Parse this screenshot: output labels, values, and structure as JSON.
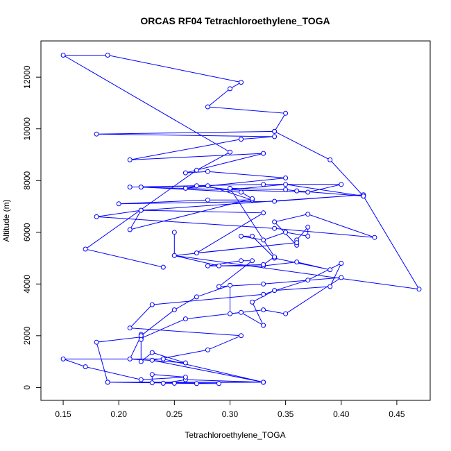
{
  "chart_data": {
    "type": "line",
    "title": "ORCAS RF04 Tetrachloroethylene_TOGA",
    "xlabel": "Tetrachloroethylene_TOGA",
    "ylabel": "Altitude (m)",
    "xlim": [
      0.13,
      0.48
    ],
    "ylim": [
      -500,
      13400
    ],
    "x_ticks": [
      0.15,
      0.2,
      0.25,
      0.3,
      0.35,
      0.4,
      0.45
    ],
    "x_tick_labels": [
      "0.15",
      "0.20",
      "0.25",
      "0.30",
      "0.35",
      "0.40",
      "0.45"
    ],
    "y_ticks": [
      0,
      2000,
      4000,
      6000,
      8000,
      10000,
      12000
    ],
    "y_tick_labels": [
      "0",
      "2000",
      "4000",
      "6000",
      "8000",
      "10000",
      "12000"
    ],
    "grid": false,
    "colors": {
      "series": "#0000ff"
    },
    "series": [
      {
        "points": [
          [
            0.33,
            200
          ],
          [
            0.19,
            200
          ],
          [
            0.29,
            150
          ],
          [
            0.27,
            150
          ],
          [
            0.25,
            160
          ],
          [
            0.24,
            160
          ],
          [
            0.26,
            300
          ],
          [
            0.33,
            200
          ],
          [
            0.23,
            180
          ],
          [
            0.23,
            500
          ],
          [
            0.26,
            400
          ],
          [
            0.22,
            300
          ],
          [
            0.17,
            800
          ],
          [
            0.15,
            1100
          ],
          [
            0.24,
            1100
          ],
          [
            0.33,
            200
          ],
          [
            0.23,
            1050
          ],
          [
            0.28,
            1450
          ],
          [
            0.31,
            2000
          ],
          [
            0.21,
            2300
          ],
          [
            0.23,
            3200
          ],
          [
            0.33,
            3600
          ],
          [
            0.37,
            4150
          ],
          [
            0.4,
            4800
          ],
          [
            0.39,
            3900
          ],
          [
            0.34,
            3750
          ],
          [
            0.32,
            3300
          ],
          [
            0.33,
            2400
          ],
          [
            0.31,
            2900
          ],
          [
            0.26,
            2650
          ],
          [
            0.22,
            1900
          ],
          [
            0.22,
            2050
          ],
          [
            0.22,
            1950
          ],
          [
            0.18,
            1750
          ],
          [
            0.19,
            200
          ]
        ]
      },
      {
        "points": [
          [
            0.22,
            1850
          ],
          [
            0.22,
            1000
          ],
          [
            0.23,
            1350
          ],
          [
            0.26,
            950
          ],
          [
            0.21,
            1100
          ],
          [
            0.22,
            2000
          ],
          [
            0.25,
            3000
          ],
          [
            0.27,
            3500
          ],
          [
            0.3,
            3950
          ],
          [
            0.3,
            2850
          ],
          [
            0.33,
            3000
          ],
          [
            0.35,
            2850
          ],
          [
            0.4,
            4250
          ],
          [
            0.33,
            4000
          ],
          [
            0.29,
            3900
          ],
          [
            0.32,
            4900
          ],
          [
            0.31,
            4900
          ],
          [
            0.28,
            4700
          ],
          [
            0.33,
            4700
          ],
          [
            0.36,
            4850
          ],
          [
            0.39,
            4550
          ],
          [
            0.34,
            5000
          ],
          [
            0.32,
            5850
          ],
          [
            0.31,
            5850
          ],
          [
            0.33,
            5700
          ],
          [
            0.35,
            6000
          ],
          [
            0.37,
            5850
          ],
          [
            0.37,
            6200
          ],
          [
            0.36,
            5700
          ],
          [
            0.36,
            5500
          ],
          [
            0.34,
            6400
          ],
          [
            0.37,
            6700
          ],
          [
            0.43,
            5800
          ],
          [
            0.34,
            6150
          ],
          [
            0.18,
            6600
          ],
          [
            0.22,
            6850
          ],
          [
            0.42,
            7450
          ],
          [
            0.34,
            7200
          ],
          [
            0.2,
            7100
          ],
          [
            0.28,
            7250
          ],
          [
            0.32,
            7250
          ],
          [
            0.28,
            7800
          ],
          [
            0.21,
            7750
          ],
          [
            0.33,
            7850
          ],
          [
            0.4,
            7850
          ],
          [
            0.37,
            7550
          ],
          [
            0.22,
            7750
          ]
        ]
      },
      {
        "points": [
          [
            0.22,
            7750
          ],
          [
            0.31,
            7550
          ],
          [
            0.32,
            7300
          ],
          [
            0.21,
            6100
          ],
          [
            0.22,
            6850
          ],
          [
            0.33,
            6750
          ],
          [
            0.27,
            5200
          ],
          [
            0.36,
            5600
          ],
          [
            0.25,
            5100
          ],
          [
            0.47,
            3800
          ],
          [
            0.42,
            7400
          ],
          [
            0.35,
            7850
          ],
          [
            0.3,
            7650
          ],
          [
            0.27,
            7800
          ],
          [
            0.26,
            7700
          ],
          [
            0.35,
            8100
          ],
          [
            0.28,
            8350
          ],
          [
            0.26,
            8300
          ],
          [
            0.33,
            9050
          ],
          [
            0.21,
            8800
          ],
          [
            0.31,
            9600
          ],
          [
            0.34,
            9700
          ],
          [
            0.18,
            9800
          ],
          [
            0.34,
            9900
          ],
          [
            0.35,
            10600
          ],
          [
            0.28,
            10850
          ],
          [
            0.3,
            11550
          ],
          [
            0.31,
            11800
          ],
          [
            0.19,
            12850
          ],
          [
            0.15,
            12850
          ],
          [
            0.3,
            9100
          ],
          [
            0.27,
            8400
          ],
          [
            0.17,
            5350
          ],
          [
            0.24,
            4650
          ]
        ]
      },
      {
        "points": [
          [
            0.25,
            6000
          ],
          [
            0.25,
            5100
          ],
          [
            0.29,
            4700
          ],
          [
            0.33,
            4750
          ],
          [
            0.34,
            5050
          ],
          [
            0.3,
            7700
          ],
          [
            0.35,
            7650
          ],
          [
            0.36,
            7600
          ],
          [
            0.42,
            7400
          ],
          [
            0.39,
            8800
          ],
          [
            0.34,
            9900
          ]
        ]
      }
    ]
  }
}
